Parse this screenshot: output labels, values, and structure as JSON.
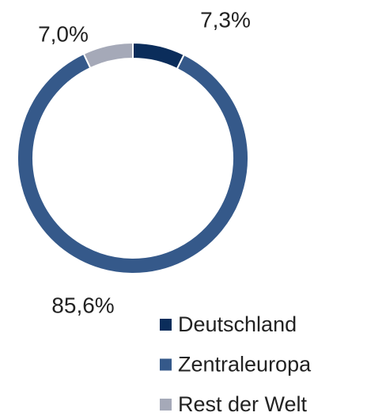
{
  "chart_data": {
    "type": "donut",
    "categories": [
      "Deutschland",
      "Zentraleuropa",
      "Rest der Welt"
    ],
    "values": [
      7.3,
      85.6,
      7.0
    ],
    "value_labels": [
      "7,3%",
      "85,6%",
      "7,0%"
    ],
    "colors": [
      "#0b2d5b",
      "#35598a",
      "#a5a9b8"
    ],
    "legend": "bottom-right"
  }
}
